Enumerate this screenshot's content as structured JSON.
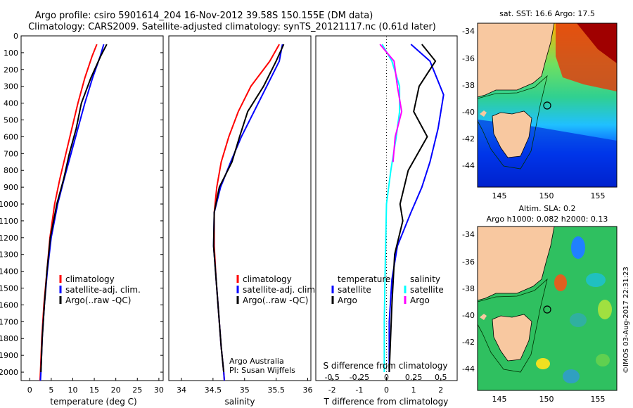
{
  "title_line1": "Argo profile: csiro 5901614_204 16-Nov-2012 39.58S 150.155E (DM data)",
  "title_line2": "Climatology: CARS2009. Satellite-adjusted climatology: synTS_20121117.nc (0.61d later)",
  "footer_stamp": "©IMOS 03-Aug-2017 22:31:23",
  "colors": {
    "climatology": "#ff0000",
    "satellite": "#0000ff",
    "argo": "#000000",
    "argo_salinity": "#ff00ff",
    "satellite_salinity": "#00ffff"
  },
  "depth_ticks": [
    "0",
    "100",
    "200",
    "300",
    "400",
    "500",
    "600",
    "700",
    "800",
    "900",
    "1000",
    "1100",
    "1200",
    "1300",
    "1400",
    "1500",
    "1600",
    "1700",
    "1800",
    "1900",
    "2000"
  ],
  "panels": {
    "temperature": {
      "xlabel": "temperature (deg C)",
      "xticks": [
        "0",
        "5",
        "10",
        "15",
        "20",
        "25",
        "30"
      ],
      "legend": [
        "climatology",
        "satellite-adj. clim.",
        "Argo(..raw -QC)"
      ]
    },
    "salinity": {
      "xlabel": "salinity",
      "xticks": [
        "34",
        "34.5",
        "35",
        "35.5",
        "36"
      ],
      "legend": [
        "climatology",
        "satellite-adj. clim.",
        "Argo(..raw -QC)"
      ],
      "credit_line1": "Argo Australia",
      "credit_line2": "PI: Susan Wijffels"
    },
    "difference": {
      "xlabel": "T difference from climatology",
      "xticks": [
        "-2",
        "-1",
        "0",
        "1",
        "2"
      ],
      "top_label": "S difference from climatology",
      "top_ticks": [
        "-0.5",
        "-0.25",
        "0",
        "0.25",
        "0.5"
      ],
      "legend_temperature_title": "temperature",
      "legend_salinity_title": "salinity",
      "legend_satellite": "satellite",
      "legend_argo": "Argo"
    }
  },
  "maps": {
    "sst_title": "sat. SST: 16.6 Argo: 17.5",
    "sla_title_line1": "Altim. SLA: 0.2",
    "sla_title_line2": "Argo h1000: 0.082 h2000: 0.13",
    "lat_ticks": [
      "-34",
      "-36",
      "-38",
      "-40",
      "-42",
      "-44"
    ],
    "lon_ticks": [
      "145",
      "150",
      "155"
    ]
  },
  "chart_data": [
    {
      "type": "line",
      "name": "temperature",
      "xlabel": "temperature (deg C)",
      "xlim": [
        -2,
        31
      ],
      "ylim": [
        0,
        2050
      ],
      "series": [
        {
          "name": "climatology",
          "points": [
            [
              15.6,
              50
            ],
            [
              14.5,
              120
            ],
            [
              12.8,
              250
            ],
            [
              11.2,
              400
            ],
            [
              9.8,
              550
            ],
            [
              8.4,
              700
            ],
            [
              7.0,
              850
            ],
            [
              5.8,
              1000
            ],
            [
              4.7,
              1200
            ],
            [
              4.0,
              1400
            ],
            [
              3.3,
              1600
            ],
            [
              2.8,
              1800
            ],
            [
              2.5,
              2000
            ],
            [
              2.4,
              2050
            ]
          ]
        },
        {
          "name": "satellite-adj. clim.",
          "points": [
            [
              17.2,
              50
            ],
            [
              16.4,
              120
            ],
            [
              14.6,
              250
            ],
            [
              12.8,
              400
            ],
            [
              11.2,
              550
            ],
            [
              9.6,
              700
            ],
            [
              8.0,
              850
            ],
            [
              6.5,
              1000
            ],
            [
              5.0,
              1200
            ],
            [
              4.1,
              1400
            ],
            [
              3.4,
              1600
            ],
            [
              2.9,
              1800
            ],
            [
              2.6,
              2000
            ],
            [
              2.5,
              2050
            ]
          ]
        },
        {
          "name": "Argo(..raw -QC)",
          "points": [
            [
              17.9,
              50
            ],
            [
              16.5,
              120
            ],
            [
              14.2,
              250
            ],
            [
              12.0,
              400
            ],
            [
              10.8,
              550
            ],
            [
              9.2,
              700
            ],
            [
              7.9,
              850
            ],
            [
              6.3,
              1000
            ],
            [
              4.8,
              1200
            ],
            [
              4.0,
              1400
            ],
            [
              3.4,
              1600
            ],
            [
              2.9,
              1800
            ],
            [
              2.6,
              2000
            ]
          ]
        }
      ]
    },
    {
      "type": "line",
      "name": "salinity",
      "xlabel": "salinity",
      "xlim": [
        33.8,
        36.05
      ],
      "ylim": [
        0,
        2050
      ],
      "series": [
        {
          "name": "climatology",
          "points": [
            [
              35.55,
              50
            ],
            [
              35.4,
              150
            ],
            [
              35.1,
              300
            ],
            [
              34.9,
              450
            ],
            [
              34.75,
              600
            ],
            [
              34.63,
              750
            ],
            [
              34.56,
              900
            ],
            [
              34.52,
              1050
            ],
            [
              34.52,
              1250
            ],
            [
              34.55,
              1450
            ],
            [
              34.59,
              1650
            ],
            [
              34.63,
              1850
            ],
            [
              34.67,
              2000
            ],
            [
              34.68,
              2050
            ]
          ]
        },
        {
          "name": "satellite-adj. clim.",
          "points": [
            [
              35.6,
              50
            ],
            [
              35.55,
              150
            ],
            [
              35.35,
              300
            ],
            [
              35.15,
              450
            ],
            [
              34.95,
              600
            ],
            [
              34.78,
              750
            ],
            [
              34.62,
              900
            ],
            [
              34.52,
              1050
            ],
            [
              34.51,
              1250
            ],
            [
              34.55,
              1450
            ],
            [
              34.59,
              1650
            ],
            [
              34.63,
              1850
            ],
            [
              34.67,
              2000
            ],
            [
              34.68,
              2050
            ]
          ]
        },
        {
          "name": "Argo(..raw -QC)",
          "points": [
            [
              35.62,
              50
            ],
            [
              35.5,
              150
            ],
            [
              35.3,
              300
            ],
            [
              35.05,
              450
            ],
            [
              34.92,
              600
            ],
            [
              34.8,
              750
            ],
            [
              34.6,
              900
            ],
            [
              34.52,
              1050
            ],
            [
              34.51,
              1250
            ],
            [
              34.55,
              1450
            ],
            [
              34.59,
              1650
            ],
            [
              34.63,
              1850
            ],
            [
              34.67,
              2000
            ]
          ]
        }
      ]
    },
    {
      "type": "line",
      "name": "difference from climatology",
      "xlabel": "T difference from climatology",
      "top_label": "S difference from climatology",
      "xlim": [
        -2.6,
        2.6
      ],
      "ylim": [
        0,
        2050
      ],
      "series": [
        {
          "name": "temperature satellite",
          "points": [
            [
              0.9,
              50
            ],
            [
              1.6,
              150
            ],
            [
              2.1,
              350
            ],
            [
              1.9,
              550
            ],
            [
              1.6,
              750
            ],
            [
              1.3,
              900
            ],
            [
              0.9,
              1050
            ],
            [
              0.4,
              1250
            ],
            [
              0.2,
              1450
            ],
            [
              0.1,
              1700
            ],
            [
              0.1,
              2000
            ]
          ]
        },
        {
          "name": "temperature Argo",
          "points": [
            [
              1.3,
              50
            ],
            [
              1.8,
              150
            ],
            [
              1.2,
              300
            ],
            [
              1.0,
              450
            ],
            [
              1.5,
              600
            ],
            [
              0.8,
              800
            ],
            [
              0.5,
              1000
            ],
            [
              0.6,
              1100
            ],
            [
              0.3,
              1300
            ],
            [
              0.2,
              1600
            ],
            [
              0.1,
              2000
            ]
          ]
        },
        {
          "name": "salinity satellite",
          "points": [
            [
              -0.04,
              50
            ],
            [
              0.05,
              150
            ],
            [
              0.12,
              300
            ],
            [
              0.12,
              450
            ],
            [
              0.09,
              600
            ],
            [
              0.04,
              800
            ],
            [
              0.0,
              1000
            ],
            [
              -0.01,
              1300
            ],
            [
              -0.02,
              1700
            ],
            [
              -0.02,
              2000
            ]
          ]
        },
        {
          "name": "salinity Argo",
          "points": [
            [
              -0.06,
              50
            ],
            [
              0.07,
              150
            ],
            [
              0.1,
              300
            ],
            [
              0.14,
              450
            ],
            [
              0.08,
              600
            ],
            [
              0.06,
              750
            ]
          ]
        }
      ]
    }
  ]
}
